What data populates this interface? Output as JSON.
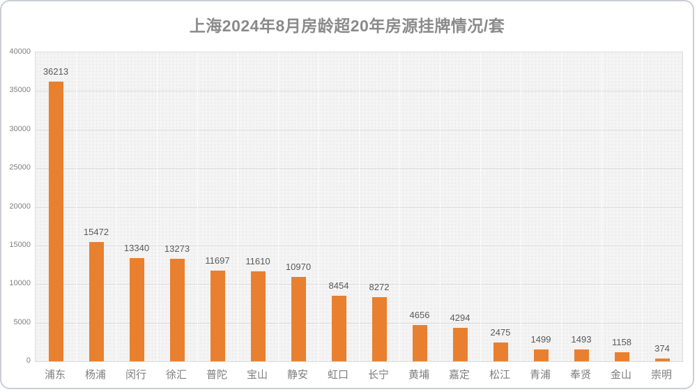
{
  "title": "上海2024年8月房龄超20年房源挂牌情况/套",
  "colors": {
    "bar": "#e8802f",
    "title_text": "#8a8a8a",
    "data_label_text": "#595959",
    "axis_label_text": "#7f7f7f",
    "plot_background": "#f4f4f5",
    "gridline_horizontal": "#dcdcdc",
    "gridline_vertical": "#fdfdfd",
    "frame_border": "#cbced3"
  },
  "chart_data": {
    "type": "bar",
    "title": "上海2024年8月房龄超20年房源挂牌情况/套",
    "categories": [
      "浦东",
      "杨浦",
      "闵行",
      "徐汇",
      "普陀",
      "宝山",
      "静安",
      "虹口",
      "长宁",
      "黄埔",
      "嘉定",
      "松江",
      "青浦",
      "奉贤",
      "金山",
      "崇明"
    ],
    "values": [
      36213,
      15472,
      13340,
      13273,
      11697,
      11610,
      10970,
      8454,
      8272,
      4656,
      4294,
      2475,
      1499,
      1493,
      1158,
      374
    ],
    "data_labels": true,
    "xlabel": "",
    "ylabel": "",
    "ylim": [
      0,
      40000
    ],
    "ytick_step": 5000,
    "yticks": [
      "0",
      "5000",
      "10000",
      "15000",
      "20000",
      "25000",
      "30000",
      "35000",
      "40000"
    ],
    "grid": true,
    "legend_position": "none"
  }
}
